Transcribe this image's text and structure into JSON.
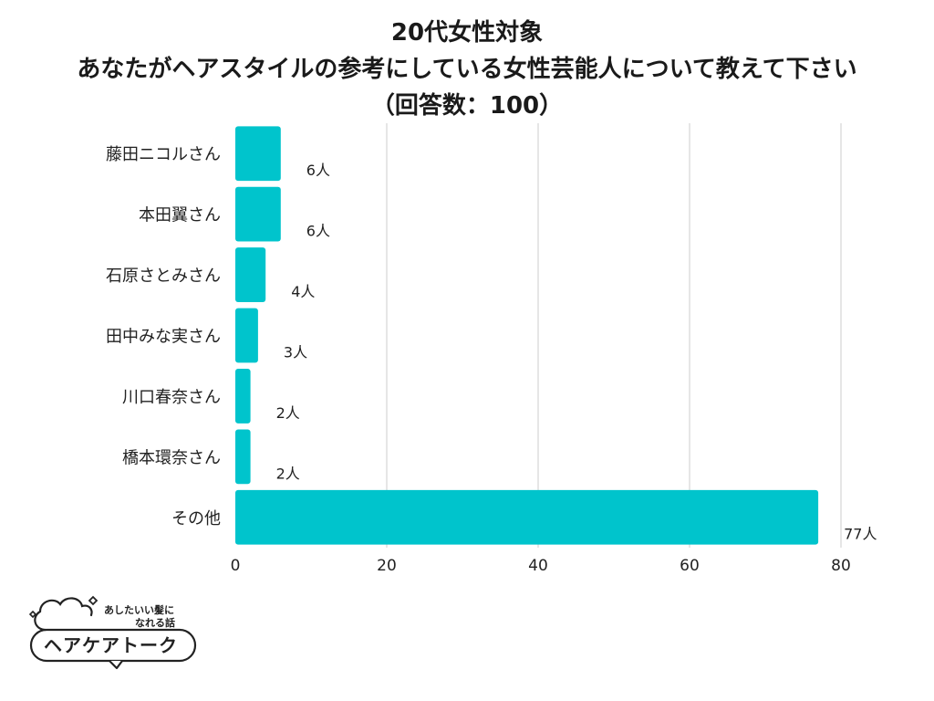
{
  "title_lines": [
    "20代女性対象",
    "あなたがヘアスタイルの参考にしている女性芸能人について教えて下さい",
    "（回答数：100）"
  ],
  "chart_data": {
    "type": "bar",
    "orientation": "horizontal",
    "categories": [
      "藤田ニコルさん",
      "本田翼さん",
      "石原さとみさん",
      "田中みな実さん",
      "川口春奈さん",
      "橋本環奈さん",
      "その他"
    ],
    "values": [
      6,
      6,
      4,
      3,
      2,
      2,
      77
    ],
    "data_labels": [
      "6人",
      "6人",
      "4人",
      "3人",
      "2人",
      "2人",
      "77人"
    ],
    "xlim": [
      0,
      80
    ],
    "x_ticks": [
      "0",
      "20",
      "40",
      "60",
      "80"
    ],
    "grid": true,
    "bar_color": "#00c4cc",
    "grid_color": "#cccccc"
  },
  "logo": {
    "tagline_1": "あしたいい髪に",
    "tagline_2": "なれる話",
    "name": "ヘアケアトーク"
  }
}
